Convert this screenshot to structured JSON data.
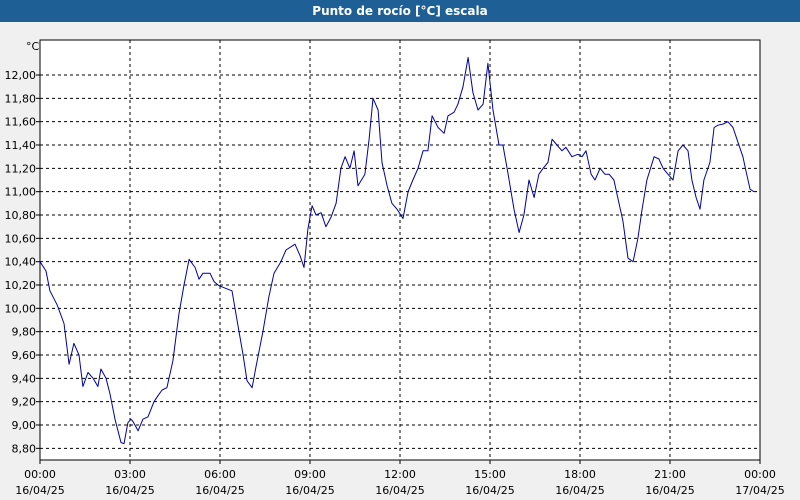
{
  "window": {
    "title": "Punto de rocío [°C] escala"
  },
  "colors": {
    "title_bg": "#1e5f95",
    "line": "#0000a0",
    "plot_bg": "#ffffff",
    "page_bg": "#f0f0f0"
  },
  "chart_data": {
    "type": "line",
    "title": "Punto de rocío [°C] escala",
    "y_unit_label": "°C",
    "ylim": [
      8.7,
      12.3
    ],
    "xlim": [
      0,
      24
    ],
    "grid": true,
    "y_ticks": [
      8.8,
      9.0,
      9.2,
      9.4,
      9.6,
      9.8,
      10.0,
      10.2,
      10.4,
      10.6,
      10.8,
      11.0,
      11.2,
      11.4,
      11.6,
      11.8,
      12.0
    ],
    "y_tick_labels": [
      "8,80",
      "9,00",
      "9,20",
      "9,40",
      "9,60",
      "9,80",
      "10,00",
      "10,20",
      "10,40",
      "10,60",
      "10,80",
      "11,00",
      "11,20",
      "11,40",
      "11,60",
      "11,80",
      "12,00"
    ],
    "x_ticks": [
      {
        "value": 0,
        "time": "00:00",
        "date": "16/04/25"
      },
      {
        "value": 3,
        "time": "03:00",
        "date": "16/04/25"
      },
      {
        "value": 6,
        "time": "06:00",
        "date": "16/04/25"
      },
      {
        "value": 9,
        "time": "09:00",
        "date": "16/04/25"
      },
      {
        "value": 12,
        "time": "12:00",
        "date": "16/04/25"
      },
      {
        "value": 15,
        "time": "15:00",
        "date": "16/04/25"
      },
      {
        "value": 18,
        "time": "18:00",
        "date": "16/04/25"
      },
      {
        "value": 21,
        "time": "21:00",
        "date": "16/04/25"
      },
      {
        "value": 24,
        "time": "00:00",
        "date": "17/04/25"
      }
    ],
    "series": [
      {
        "x": [
          0.0,
          0.2,
          0.33,
          0.57,
          0.8,
          0.97,
          1.13,
          1.3,
          1.43,
          1.6,
          1.77,
          1.93,
          2.03,
          2.2,
          2.33,
          2.5,
          2.7,
          2.8,
          2.93,
          3.03,
          3.1,
          3.27,
          3.43,
          3.6,
          3.8,
          3.93,
          4.07,
          4.23,
          4.43,
          4.63,
          4.8,
          4.97,
          5.17,
          5.3,
          5.43,
          5.67,
          5.8,
          5.93,
          6.1,
          6.4,
          6.6,
          6.77,
          6.9,
          7.07,
          7.2,
          7.43,
          7.63,
          7.8,
          8.03,
          8.2,
          8.5,
          8.67,
          8.8,
          8.93,
          9.07,
          9.2,
          9.37,
          9.53,
          9.7,
          9.87,
          10.03,
          10.17,
          10.33,
          10.47,
          10.6,
          10.83,
          10.97,
          11.1,
          11.27,
          11.4,
          11.57,
          11.73,
          11.9,
          12.1,
          12.27,
          12.43,
          12.6,
          12.77,
          12.93,
          13.07,
          13.27,
          13.47,
          13.6,
          13.8,
          13.93,
          14.1,
          14.27,
          14.43,
          14.6,
          14.77,
          14.93,
          15.1,
          15.3,
          15.43,
          15.57,
          15.8,
          15.97,
          16.13,
          16.3,
          16.47,
          16.63,
          16.77,
          16.93,
          17.07,
          17.23,
          17.4,
          17.53,
          17.73,
          17.93,
          18.07,
          18.2,
          18.37,
          18.5,
          18.67,
          18.83,
          18.97,
          19.13,
          19.3,
          19.43,
          19.6,
          19.77,
          19.93,
          20.07,
          20.23,
          20.47,
          20.63,
          20.77,
          20.93,
          21.1,
          21.27,
          21.43,
          21.6,
          21.73,
          21.87,
          22.0,
          22.13,
          22.33,
          22.47,
          22.6,
          22.77,
          22.93,
          23.1,
          23.27,
          23.43,
          23.53,
          23.67,
          23.8
        ],
        "values": [
          10.4,
          10.32,
          10.15,
          10.03,
          9.87,
          9.52,
          9.7,
          9.6,
          9.33,
          9.45,
          9.4,
          9.33,
          9.48,
          9.4,
          9.27,
          9.05,
          8.85,
          8.84,
          9.02,
          9.05,
          9.03,
          8.95,
          9.05,
          9.07,
          9.2,
          9.25,
          9.3,
          9.32,
          9.55,
          9.95,
          10.2,
          10.42,
          10.35,
          10.25,
          10.3,
          10.3,
          10.23,
          10.2,
          10.18,
          10.15,
          9.85,
          9.6,
          9.38,
          9.32,
          9.5,
          9.8,
          10.1,
          10.3,
          10.4,
          10.5,
          10.55,
          10.45,
          10.35,
          10.68,
          10.88,
          10.8,
          10.82,
          10.7,
          10.78,
          10.9,
          11.2,
          11.3,
          11.2,
          11.35,
          11.05,
          11.15,
          11.45,
          11.8,
          11.7,
          11.25,
          11.05,
          10.9,
          10.85,
          10.77,
          11.0,
          11.1,
          11.2,
          11.35,
          11.35,
          11.65,
          11.55,
          11.5,
          11.65,
          11.68,
          11.75,
          11.9,
          12.15,
          11.85,
          11.7,
          11.75,
          12.1,
          11.7,
          11.4,
          11.4,
          11.2,
          10.85,
          10.65,
          10.8,
          11.1,
          10.95,
          11.15,
          11.2,
          11.25,
          11.45,
          11.4,
          11.35,
          11.38,
          11.3,
          11.32,
          11.3,
          11.35,
          11.15,
          11.1,
          11.2,
          11.15,
          11.15,
          11.1,
          10.9,
          10.75,
          10.43,
          10.4,
          10.6,
          10.85,
          11.1,
          11.3,
          11.28,
          11.2,
          11.15,
          11.1,
          11.35,
          11.4,
          11.35,
          11.1,
          10.95,
          10.85,
          11.1,
          11.25,
          11.55,
          11.57,
          11.58,
          11.6,
          11.55,
          11.42,
          11.3,
          11.18,
          11.02,
          11.0
        ]
      }
    ]
  }
}
